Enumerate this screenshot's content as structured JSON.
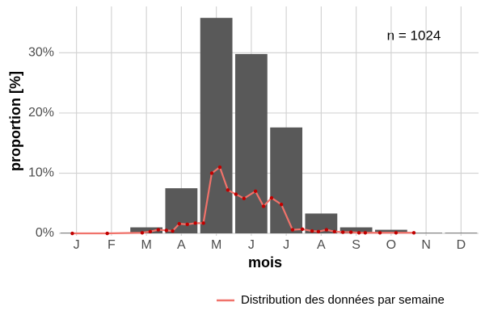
{
  "chart_data": {
    "type": "bar",
    "x_label": "mois",
    "y_label": "proportion [%]",
    "annotation": "n = 1024",
    "categories": [
      "J",
      "F",
      "M",
      "A",
      "M",
      "J",
      "J",
      "A",
      "S",
      "O",
      "N",
      "D"
    ],
    "values": [
      0.1,
      0,
      1.0,
      7.5,
      35.8,
      29.8,
      17.6,
      3.3,
      1.0,
      0.6,
      0.1,
      0.1
    ],
    "color": "#595959",
    "ylim": [
      -0.4,
      37.7
    ],
    "yticks": [
      {
        "value": 0,
        "label": "0%"
      },
      {
        "value": 10,
        "label": "10%"
      },
      {
        "value": 20,
        "label": "20%"
      },
      {
        "value": 30,
        "label": "30%"
      }
    ],
    "grid": true,
    "legend": "bottom-right",
    "line": {
      "name": "Distribution des données par semaine",
      "color": "#f0726a",
      "point_color": "#c00000",
      "x": [
        0.88,
        1.88,
        2.88,
        3.11,
        3.34,
        3.57,
        3.75,
        3.94,
        4.17,
        4.4,
        4.63,
        4.87,
        5.1,
        5.33,
        5.56,
        5.79,
        6.12,
        6.35,
        6.58,
        6.86,
        7.18,
        7.46,
        7.74,
        7.92,
        8.15,
        8.38,
        8.62,
        8.85,
        9.08,
        9.26,
        9.68,
        10.14,
        10.65
      ],
      "values": [
        0,
        0,
        0.1,
        0.3,
        0.6,
        0.5,
        0.4,
        1.6,
        1.5,
        1.7,
        1.7,
        10.0,
        11.0,
        7.2,
        6.5,
        5.8,
        7.0,
        4.5,
        5.9,
        4.8,
        0.6,
        0.7,
        0.4,
        0.3,
        0.6,
        0.3,
        0.2,
        0.2,
        0.1,
        0.1,
        0.1,
        0.1,
        0.1
      ]
    }
  }
}
